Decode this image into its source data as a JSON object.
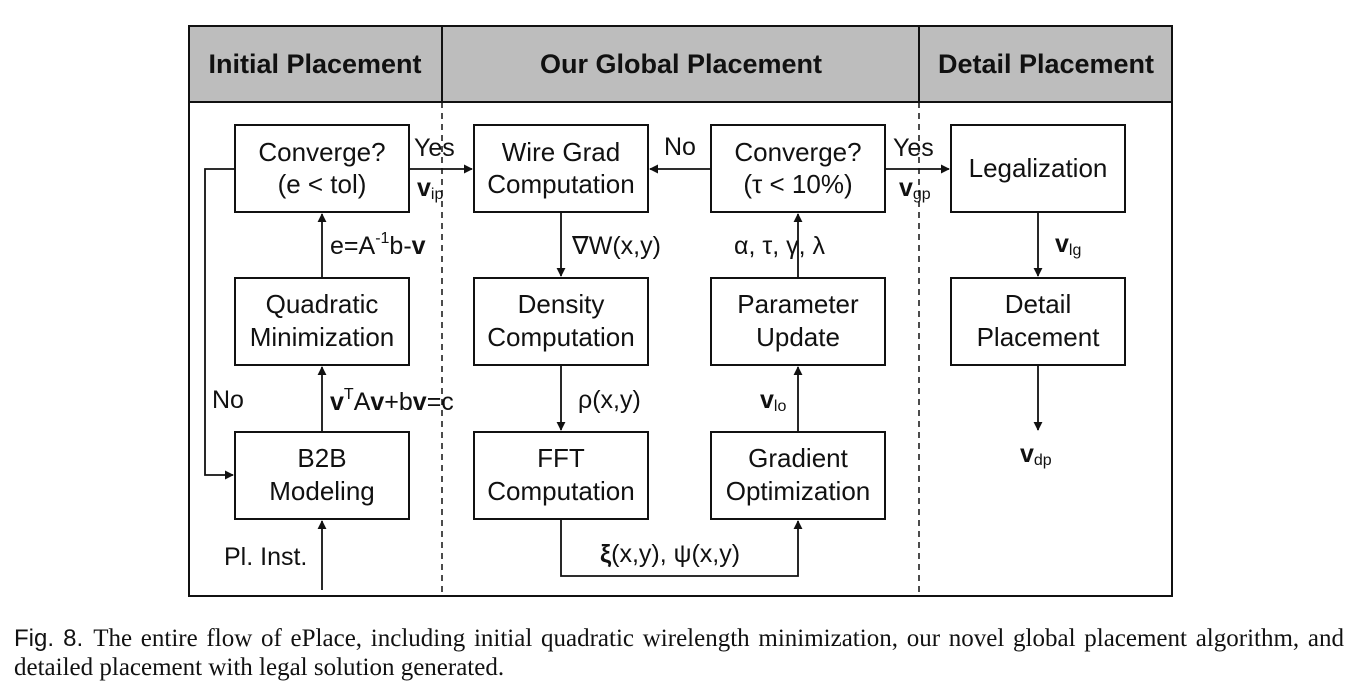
{
  "headers": {
    "initial": "Initial Placement",
    "global": "Our Global Placement",
    "detail": "Detail Placement"
  },
  "boxes": {
    "converge_ip": [
      "Converge?",
      "(e < tol)"
    ],
    "quadratic": [
      "Quadratic",
      "Minimization"
    ],
    "b2b": [
      "B2B",
      "Modeling"
    ],
    "wire_grad": [
      "Wire Grad",
      "Computation"
    ],
    "density": [
      "Density",
      "Computation"
    ],
    "fft": [
      "FFT",
      "Computation"
    ],
    "converge_gp": [
      "Converge?",
      "(τ < 10%)"
    ],
    "param_update": [
      "Parameter",
      "Update"
    ],
    "gradient_opt": [
      "Gradient",
      "Optimization"
    ],
    "legalization": [
      "Legalization"
    ],
    "detail_place": [
      "Detail",
      "Placement"
    ]
  },
  "labels": {
    "yes1": "Yes",
    "v_ip": "v",
    "v_ip_sub": "ip",
    "no_gp": "No",
    "yes2": "Yes",
    "v_gp": "v",
    "v_gp_sub": "gp",
    "err_pre": "e=A",
    "err_sup": "-1",
    "err_mid": "b-",
    "err_v": "v",
    "no_ip": "No",
    "vt": "v",
    "vt_sup": "T",
    "vt_mid": "A",
    "vt_v": "v",
    "vt_mid2": "+b",
    "vt_v2": "v",
    "vt_end": "=c",
    "pl_inst": "Pl. Inst.",
    "grad_w": "∇W(x,y)",
    "rho": "ρ(x,y)",
    "xi_bold": "ξ",
    "xi_rest": "(x,y), ψ(x,y)",
    "params": "α, τ, γ, λ",
    "v_lo": "v",
    "v_lo_sub": "lo",
    "v_lg": "v",
    "v_lg_sub": "lg",
    "v_dp": "v",
    "v_dp_sub": "dp"
  },
  "caption": {
    "fig": "Fig. 8.",
    "text": "The entire flow of ePlace, including initial quadratic wirelength minimization, our novel global placement algorithm, and detailed placement with legal solution generated."
  }
}
